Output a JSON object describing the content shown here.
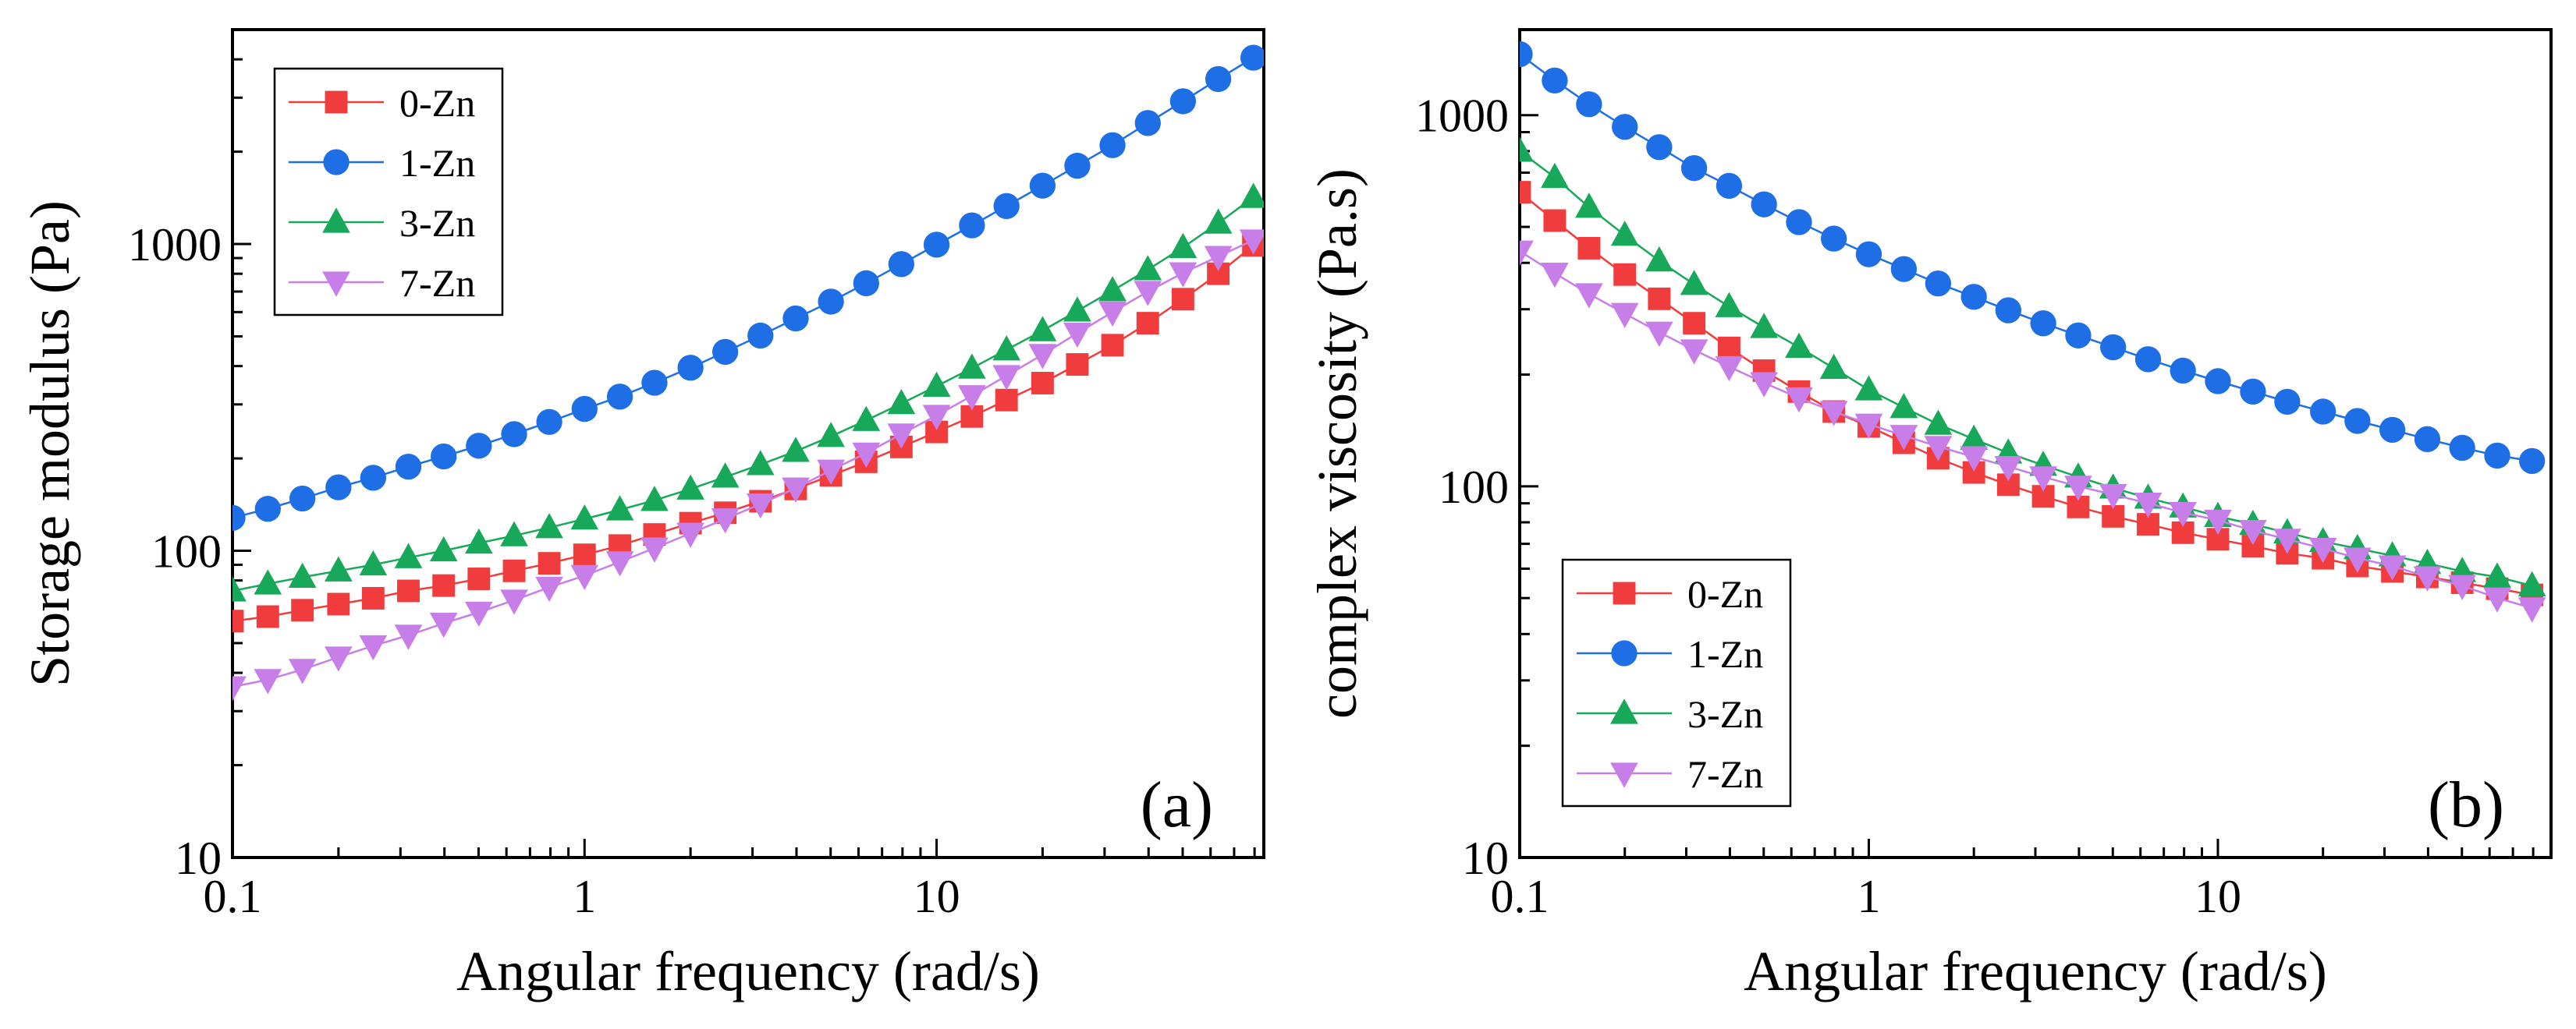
{
  "chart_data": [
    {
      "type": "line",
      "panel_label": "(a)",
      "xlabel": "Angular frequency (rad/s)",
      "ylabel": "Storage modulus (Pa)",
      "x_scale": "log",
      "y_scale": "log",
      "xlim": [
        0.1,
        85
      ],
      "ylim": [
        10,
        5000
      ],
      "x_ticks": [
        0.1,
        1,
        10
      ],
      "x_tick_labels": [
        "0.1",
        "1",
        "10"
      ],
      "y_ticks": [
        10,
        100,
        1000
      ],
      "y_tick_labels": [
        "10",
        "100",
        "1000"
      ],
      "legend_position": "top-left",
      "x": [
        0.1,
        0.126,
        0.158,
        0.2,
        0.251,
        0.316,
        0.398,
        0.501,
        0.631,
        0.794,
        1,
        1.26,
        1.58,
        2,
        2.51,
        3.16,
        3.98,
        5.01,
        6.31,
        7.94,
        10,
        12.6,
        15.8,
        20,
        25.1,
        31.6,
        39.8,
        50.1,
        63.1,
        79.4
      ],
      "series": [
        {
          "name": "0-Zn",
          "color": "#f03c3c",
          "marker": "square",
          "values": [
            59,
            61,
            64,
            67,
            70,
            74,
            77,
            81,
            86,
            91,
            97,
            104,
            113,
            123,
            133,
            145,
            159,
            176,
            195,
            218,
            244,
            274,
            310,
            352,
            405,
            468,
            552,
            661,
            800,
            990
          ]
        },
        {
          "name": "1-Zn",
          "color": "#1e6fe6",
          "marker": "circle",
          "values": [
            128,
            137,
            148,
            161,
            173,
            188,
            203,
            220,
            240,
            263,
            290,
            318,
            353,
            395,
            445,
            503,
            572,
            649,
            745,
            860,
            995,
            1150,
            1330,
            1550,
            1800,
            2100,
            2480,
            2920,
            3450,
            4050
          ]
        },
        {
          "name": "3-Zn",
          "color": "#18a85a",
          "marker": "triangle-up",
          "values": [
            74,
            78,
            82,
            86,
            90,
            95,
            100,
            106,
            112,
            119,
            127,
            136,
            146,
            159,
            174,
            191,
            211,
            236,
            266,
            302,
            344,
            394,
            452,
            522,
            605,
            705,
            825,
            975,
            1170,
            1420
          ]
        },
        {
          "name": "7-Zn",
          "color": "#c77ee8",
          "marker": "triangle-down",
          "values": [
            36,
            38,
            41,
            45,
            49,
            53,
            58,
            63,
            69,
            76,
            83,
            92,
            102,
            114,
            127,
            142,
            160,
            183,
            208,
            240,
            276,
            320,
            372,
            436,
            512,
            600,
            700,
            805,
            910,
            1030
          ]
        }
      ]
    },
    {
      "type": "line",
      "panel_label": "(b)",
      "xlabel": "Angular frequency (rad/s)",
      "ylabel": "complex viscosity (Pa.s)",
      "x_scale": "log",
      "y_scale": "log",
      "xlim": [
        0.1,
        90
      ],
      "ylim": [
        10,
        1700
      ],
      "x_ticks": [
        0.1,
        1,
        10
      ],
      "x_tick_labels": [
        "0.1",
        "1",
        "10"
      ],
      "y_ticks": [
        10,
        100,
        1000
      ],
      "y_tick_labels": [
        "10",
        "100",
        "1000"
      ],
      "legend_position": "bottom-left",
      "x": [
        0.1,
        0.126,
        0.158,
        0.2,
        0.251,
        0.316,
        0.398,
        0.501,
        0.631,
        0.794,
        1,
        1.26,
        1.58,
        2,
        2.51,
        3.16,
        3.98,
        5.01,
        6.31,
        7.94,
        10,
        12.6,
        15.8,
        20,
        25.1,
        31.6,
        39.8,
        50.1,
        63.1,
        79.4
      ],
      "series": [
        {
          "name": "0-Zn",
          "color": "#f03c3c",
          "marker": "square",
          "values": [
            620,
            520,
            438,
            372,
            320,
            275,
            236,
            205,
            180,
            159,
            145,
            131,
            119,
            109,
            101,
            94,
            88,
            83,
            79,
            75,
            72,
            69,
            66,
            64,
            61,
            59,
            57,
            55,
            53,
            51
          ]
        },
        {
          "name": "1-Zn",
          "color": "#1e6fe6",
          "marker": "circle",
          "values": [
            1460,
            1240,
            1070,
            930,
            820,
            720,
            645,
            575,
            515,
            465,
            422,
            385,
            352,
            324,
            298,
            275,
            255,
            237,
            220,
            205,
            192,
            180,
            169,
            159,
            150,
            142,
            134,
            127,
            121,
            117
          ]
        },
        {
          "name": "3-Zn",
          "color": "#18a85a",
          "marker": "triangle-up",
          "values": [
            800,
            680,
            565,
            475,
            405,
            350,
            305,
            268,
            237,
            208,
            182,
            163,
            147,
            134,
            123,
            114,
            106,
            99,
            93,
            88,
            83,
            79,
            75,
            71,
            68,
            65,
            62,
            59,
            57,
            54
          ]
        },
        {
          "name": "7-Zn",
          "color": "#c77ee8",
          "marker": "triangle-down",
          "values": [
            430,
            375,
            330,
            292,
            260,
            233,
            210,
            190,
            173,
            159,
            147,
            137,
            128,
            120,
            113,
            106,
            100,
            95,
            90,
            85,
            81,
            76,
            72,
            68,
            64,
            61,
            57,
            54,
            50,
            47
          ]
        }
      ]
    }
  ]
}
